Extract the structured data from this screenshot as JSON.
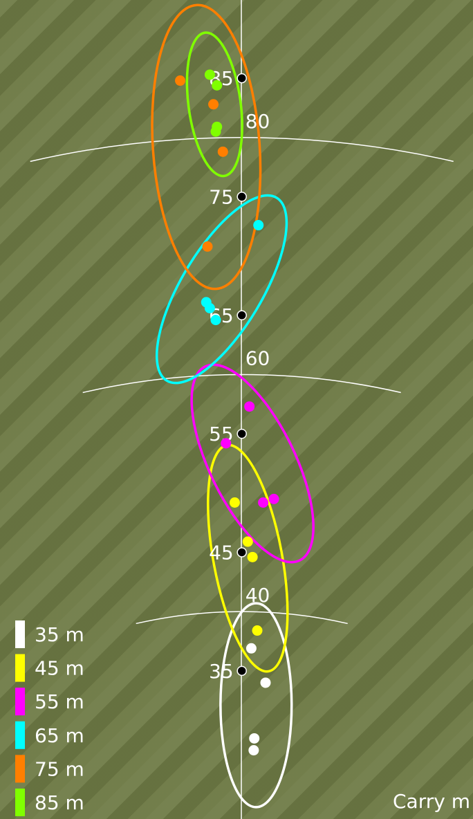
{
  "chart_data": {
    "type": "scatter",
    "x_label": "Carry m",
    "xlim": [
      -20.4,
      19.5
    ],
    "ylim": [
      22.5,
      91.6
    ],
    "yticks": [
      35,
      45,
      55,
      65,
      75,
      85
    ],
    "arcs": [
      40,
      60,
      80
    ],
    "series": [
      {
        "name": "35 m",
        "color": "#ffffff",
        "x": [
          0.8,
          2.0,
          1.05,
          1.0
        ],
        "values": [
          36.9,
          34.0,
          29.3,
          28.3
        ],
        "ellipse": {
          "cx": 1.2,
          "cy": 32.1,
          "rx": 3.0,
          "ry": 8.6,
          "angle": 0
        }
      },
      {
        "name": "45 m",
        "color": "#ffff00",
        "x": [
          1.3,
          -0.6,
          0.5,
          0.9
        ],
        "values": [
          38.4,
          49.2,
          45.9,
          44.6
        ],
        "ellipse": {
          "cx": 0.5,
          "cy": 44.5,
          "rx": 2.9,
          "ry": 9.7,
          "angle": -10.5
        }
      },
      {
        "name": "55 m",
        "color": "#ff00ff",
        "x": [
          0.64,
          -1.34,
          1.8,
          2.7
        ],
        "values": [
          57.3,
          54.2,
          49.2,
          49.5
        ],
        "ellipse": {
          "cx": 0.9,
          "cy": 52.5,
          "rx": 3.6,
          "ry": 9.1,
          "angle": -26
        }
      },
      {
        "name": "65 m",
        "color": "#00ffff",
        "x": [
          1.4,
          -3.0,
          -2.7,
          -2.2
        ],
        "values": [
          72.6,
          66.1,
          65.6,
          64.6
        ],
        "ellipse": {
          "cx": -1.7,
          "cy": 67.2,
          "rx": 3.4,
          "ry": 9.0,
          "angle": 31
        }
      },
      {
        "name": "75 m",
        "color": "#ff7f00",
        "x": [
          -5.2,
          -2.4,
          -1.6,
          -2.9
        ],
        "values": [
          84.8,
          82.8,
          78.8,
          70.8
        ],
        "ellipse": {
          "cx": -3.0,
          "cy": 79.2,
          "rx": 4.5,
          "ry": 12.0,
          "angle": -4
        }
      },
      {
        "name": "85 m",
        "color": "#80ff00",
        "x": [
          -2.7,
          -2.1,
          -2.1,
          -2.2
        ],
        "values": [
          85.3,
          84.4,
          80.9,
          80.5
        ],
        "ellipse": {
          "cx": -2.3,
          "cy": 82.8,
          "rx": 2.2,
          "ry": 6.1,
          "angle": -7.7
        }
      }
    ]
  }
}
